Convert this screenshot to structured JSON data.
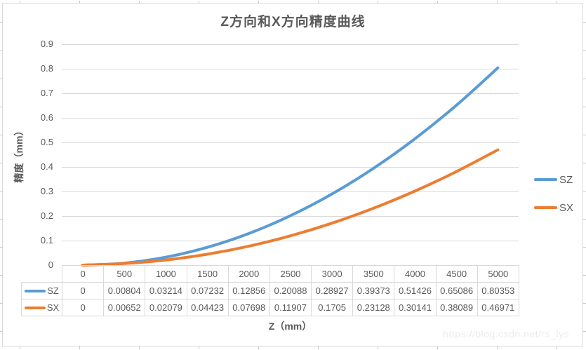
{
  "watermark": "https://blog.csdn.net/rs_lys",
  "chart_data": {
    "type": "line",
    "title": "Z方向和X方向精度曲线",
    "xlabel": "Z（mm）",
    "ylabel": "精度（mm）",
    "categories": [
      0,
      500,
      1000,
      1500,
      2000,
      2500,
      3000,
      3500,
      4000,
      4500,
      5000
    ],
    "series": [
      {
        "name": "SZ",
        "color": "#5B9BD5",
        "values": [
          0,
          0.00804,
          0.03214,
          0.07232,
          0.12856,
          0.20088,
          0.28927,
          0.39373,
          0.51426,
          0.65086,
          0.80353
        ]
      },
      {
        "name": "SX",
        "color": "#ED7D31",
        "values": [
          0,
          0.00652,
          0.02079,
          0.04423,
          0.07698,
          0.11907,
          0.1705,
          0.23128,
          0.30141,
          0.38089,
          0.46971
        ]
      }
    ],
    "ylim": [
      0,
      0.9
    ],
    "y_tick_labels": [
      "0",
      "0.1",
      "0.2",
      "0.3",
      "0.4",
      "0.5",
      "0.6",
      "0.7",
      "0.8",
      "0.9"
    ],
    "grid": true,
    "legend_position": "right",
    "show_data_table": true,
    "text_color": "#595959",
    "grid_color": "#D9D9D9"
  }
}
